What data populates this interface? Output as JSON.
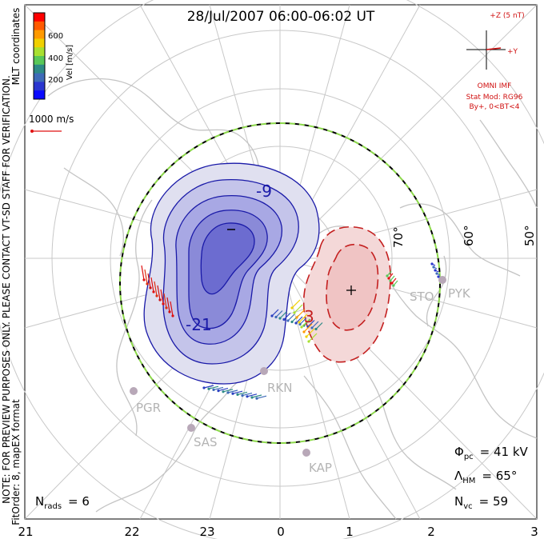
{
  "title": "28/Jul/2007 06:00-06:02 UT",
  "coords_label": "MLT coordinates",
  "velocity_scale": {
    "label": "Vel [m/s]",
    "ticks": [
      "600",
      "400",
      "200"
    ],
    "colors": [
      "#ff0000",
      "#ff5a00",
      "#ff9a00",
      "#f0d000",
      "#a8e030",
      "#58c858",
      "#2d8a86",
      "#3d6ab8",
      "#2a36d0",
      "#0a0aff"
    ]
  },
  "reference_vector": {
    "label": "1000 m/s"
  },
  "disclaimer": "NOTE: FOR PREVIEW PURPOSES ONLY. PLEASE CONTACT VT-SD STAFF FOR VERIFICATION.",
  "fit_info": "FitOrder: 8, mapEX format",
  "imf": {
    "z_label": "+Z (5 nT)",
    "y_label": "+Y",
    "source": "OMNI IMF",
    "model": "Stat Mod: RG96",
    "condition": "By+, 0<BT<4"
  },
  "latitude_labels": [
    "70°",
    "60°",
    "50°"
  ],
  "stations": [
    "STO",
    "PYK",
    "RKN",
    "PGR",
    "SAS",
    "KAP"
  ],
  "contour_labels": [
    "-9",
    "-21",
    "3"
  ],
  "cpcp": {
    "symbol": "Φ",
    "sub": "pc",
    "value": "41 kV"
  },
  "hm_boundary": {
    "symbol": "Λ",
    "sub": "HM",
    "value": "65°"
  },
  "n_vectors": {
    "symbol": "N",
    "sub": "vc",
    "value": "59"
  },
  "n_radars": {
    "symbol": "N",
    "sub": "rads",
    "value": "6"
  },
  "mlt_ticks": [
    "21",
    "22",
    "23",
    "0",
    "1",
    "2",
    "3"
  ],
  "colors": {
    "negative": "#1a1aa8",
    "positive": "#c42020",
    "boundary_dash": "#8cd84a",
    "imf": "#d01010"
  }
}
